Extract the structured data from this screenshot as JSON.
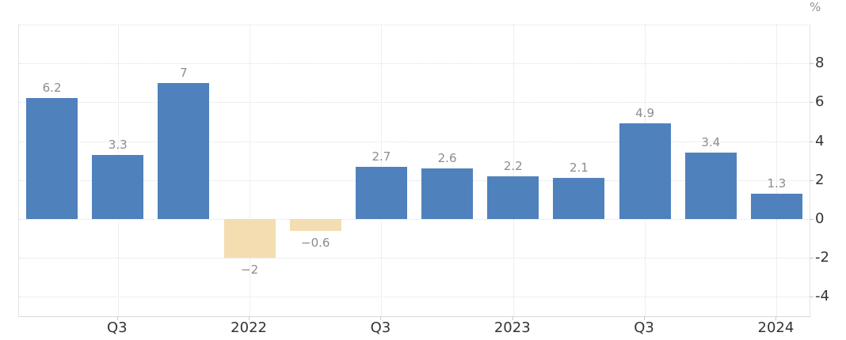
{
  "colors": {
    "positive_bar": "#4f81bd",
    "negative_bar": "#f3ddb1",
    "grid": "#dfdfdf",
    "plot_border": "#e4e4e4",
    "axis_tick": "#c9c9c9",
    "value_label": "#8c8c8c",
    "axis_label": "#333333",
    "background": "#ffffff"
  },
  "chart_data": {
    "type": "bar",
    "title": "",
    "xlabel": "",
    "ylabel": "%",
    "values": [
      6.2,
      3.3,
      7,
      -2,
      -0.6,
      2.7,
      2.6,
      2.2,
      2.1,
      4.9,
      3.4,
      1.3
    ],
    "bar_labels": [
      "6.2",
      "3.3",
      "7",
      "−2",
      "−0.6",
      "2.7",
      "2.6",
      "2.2",
      "2.1",
      "4.9",
      "3.4",
      "1.3"
    ],
    "x_ticks": [
      {
        "index": 1,
        "label": "Q3"
      },
      {
        "index": 3,
        "label": "2022"
      },
      {
        "index": 5,
        "label": "Q3"
      },
      {
        "index": 7,
        "label": "2023"
      },
      {
        "index": 9,
        "label": "Q3"
      },
      {
        "index": 11,
        "label": "2024"
      }
    ],
    "y_ticks": [
      {
        "value": 8,
        "label": "8"
      },
      {
        "value": 6,
        "label": "6"
      },
      {
        "value": 4,
        "label": "4"
      },
      {
        "value": 2,
        "label": "2"
      },
      {
        "value": 0,
        "label": "0"
      },
      {
        "value": -2,
        "label": "-2"
      },
      {
        "value": -4,
        "label": "-4"
      }
    ],
    "y_gridlines": [
      10,
      8,
      6,
      4,
      2,
      0,
      -2,
      -4
    ],
    "ylim": [
      -5,
      10
    ],
    "grid": true,
    "legend": "none"
  }
}
